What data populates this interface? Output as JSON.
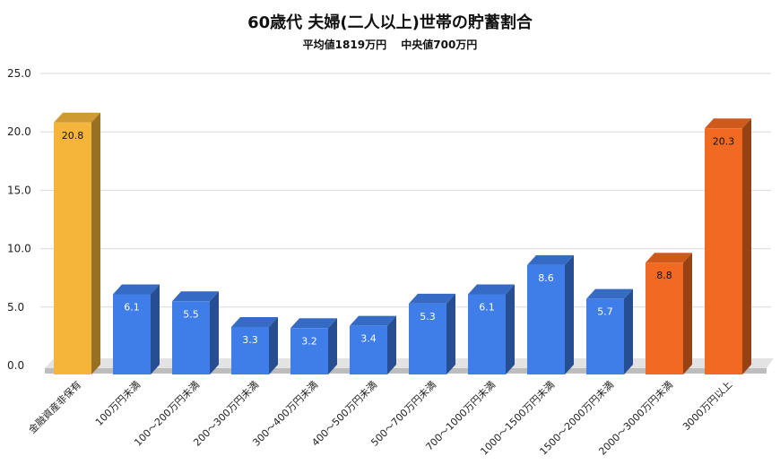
{
  "chart_data": {
    "type": "bar",
    "title": "60歳代 夫婦(二人以上)世帯の貯蓄割合",
    "subtitle": "平均値1819万円　 中央値700万円",
    "xlabel": "",
    "ylabel": "",
    "ylim": [
      0,
      25
    ],
    "yticks": [
      "0.0",
      "5.0",
      "10.0",
      "15.0",
      "20.0",
      "25.0"
    ],
    "grid": true,
    "categories": [
      "金融資産非保有",
      "100万円未満",
      "100～200万円未満",
      "200～300万円未満",
      "300～400万円未満",
      "400～500万円未満",
      "500～700万円未満",
      "700～1000万円未満",
      "1000～1500万円未満",
      "1500～2000万円未満",
      "2000～3000万円未満",
      "3000万円以上"
    ],
    "values": [
      20.8,
      6.1,
      5.5,
      3.3,
      3.2,
      3.4,
      5.3,
      6.1,
      8.6,
      5.7,
      8.8,
      20.3
    ],
    "value_labels": [
      "20.8",
      "6.1",
      "5.5",
      "3.3",
      "3.2",
      "3.4",
      "5.3",
      "6.1",
      "8.6",
      "5.7",
      "8.8",
      "20.3"
    ],
    "bar_colors": [
      "#F4B53A",
      "#3F7EE8",
      "#3F7EE8",
      "#3F7EE8",
      "#3F7EE8",
      "#3F7EE8",
      "#3F7EE8",
      "#3F7EE8",
      "#3F7EE8",
      "#3F7EE8",
      "#F26A21",
      "#F26A21"
    ],
    "label_colors": [
      "#111111",
      "#ffffff",
      "#ffffff",
      "#ffffff",
      "#ffffff",
      "#ffffff",
      "#ffffff",
      "#ffffff",
      "#ffffff",
      "#ffffff",
      "#111111",
      "#111111"
    ]
  }
}
